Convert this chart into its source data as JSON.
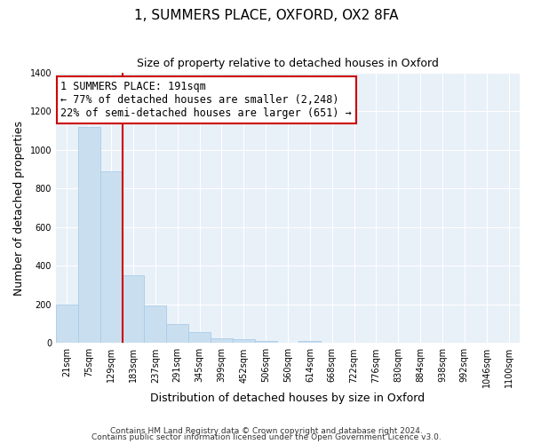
{
  "title": "1, SUMMERS PLACE, OXFORD, OX2 8FA",
  "subtitle": "Size of property relative to detached houses in Oxford",
  "xlabel": "Distribution of detached houses by size in Oxford",
  "ylabel": "Number of detached properties",
  "bar_labels": [
    "21sqm",
    "75sqm",
    "129sqm",
    "183sqm",
    "237sqm",
    "291sqm",
    "345sqm",
    "399sqm",
    "452sqm",
    "506sqm",
    "560sqm",
    "614sqm",
    "668sqm",
    "722sqm",
    "776sqm",
    "830sqm",
    "884sqm",
    "938sqm",
    "992sqm",
    "1046sqm",
    "1100sqm"
  ],
  "bar_heights": [
    200,
    1120,
    890,
    350,
    195,
    100,
    55,
    25,
    18,
    10,
    0,
    10,
    0,
    0,
    0,
    0,
    0,
    0,
    0,
    0,
    0
  ],
  "bar_color": "#c9dff0",
  "bar_edge_color": "#aacce8",
  "vline_color": "#cc0000",
  "annotation_line1": "1 SUMMERS PLACE: 191sqm",
  "annotation_line2": "← 77% of detached houses are smaller (2,248)",
  "annotation_line3": "22% of semi-detached houses are larger (651) →",
  "annotation_box_color": "#ffffff",
  "annotation_box_edge": "#cc0000",
  "ylim": [
    0,
    1400
  ],
  "yticks": [
    0,
    200,
    400,
    600,
    800,
    1000,
    1200,
    1400
  ],
  "footer1": "Contains HM Land Registry data © Crown copyright and database right 2024.",
  "footer2": "Contains public sector information licensed under the Open Government Licence v3.0.",
  "plot_bg_color": "#e8f0f8",
  "fig_bg_color": "#ffffff",
  "grid_color": "#ffffff",
  "title_fontsize": 11,
  "subtitle_fontsize": 9,
  "axis_label_fontsize": 9,
  "tick_fontsize": 7,
  "annotation_fontsize": 8.5,
  "footer_fontsize": 6.5
}
